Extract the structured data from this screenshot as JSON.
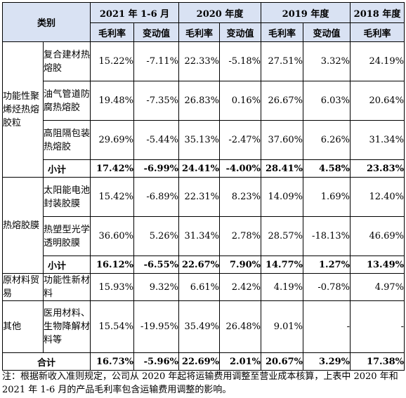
{
  "headers": {
    "category": "类别",
    "periods": [
      "2021 年 1-6 月",
      "2020 年度",
      "2019 年度",
      "2018 年度"
    ],
    "gross_margin": "毛利率",
    "change": "变动值"
  },
  "groups": [
    {
      "name": "功能性聚烯烃热熔胶粒",
      "rows": [
        {
          "name": "复合建材热熔胶",
          "values": [
            "15.22%",
            "-7.11%",
            "22.33%",
            "-5.18%",
            "27.51%",
            "3.32%",
            "24.19%"
          ]
        },
        {
          "name": "油气管道防腐热熔胶",
          "values": [
            "19.48%",
            "-7.35%",
            "26.83%",
            "0.16%",
            "26.67%",
            "6.03%",
            "20.64%"
          ]
        },
        {
          "name": "高阻隔包装热熔胶",
          "values": [
            "29.69%",
            "-5.44%",
            "35.13%",
            "-2.47%",
            "37.60%",
            "6.26%",
            "31.34%"
          ]
        }
      ],
      "subtotal": {
        "label": "小计",
        "values": [
          "17.42%",
          "-6.99%",
          "24.41%",
          "-4.00%",
          "28.41%",
          "4.58%",
          "23.83%"
        ]
      }
    },
    {
      "name": "热熔胶膜",
      "rows": [
        {
          "name": "太阳能电池封装胶膜",
          "values": [
            "15.42%",
            "-6.89%",
            "22.31%",
            "8.23%",
            "14.09%",
            "1.69%",
            "12.40%"
          ]
        },
        {
          "name": "热塑型光学透明胶膜",
          "values": [
            "36.60%",
            "5.26%",
            "31.34%",
            "2.78%",
            "28.57%",
            "-18.13%",
            "46.69%"
          ]
        }
      ],
      "subtotal": {
        "label": "小计",
        "values": [
          "16.12%",
          "-6.55%",
          "22.67%",
          "7.90%",
          "14.77%",
          "1.27%",
          "13.49%"
        ]
      }
    },
    {
      "name": "原材料贸易",
      "rows": [
        {
          "name": "功能性新材料",
          "values": [
            "15.93%",
            "9.32%",
            "6.61%",
            "2.42%",
            "4.19%",
            "-0.78%",
            "4.97%"
          ]
        }
      ]
    },
    {
      "name": "其他",
      "rows": [
        {
          "name": "医用材料、生物降解材料等",
          "values": [
            "15.54%",
            "-19.95%",
            "35.49%",
            "26.48%",
            "9.01%",
            "-",
            "-"
          ]
        }
      ]
    }
  ],
  "total": {
    "label": "合计",
    "values": [
      "16.73%",
      "-5.96%",
      "22.69%",
      "2.01%",
      "20.67%",
      "3.29%",
      "17.38%"
    ]
  },
  "note": "注：根据新收入准则规定，公司从 2020 年起将运输费用调整至营业成本核算，上表中 2020 年和 2021 年 1-6 月的产品毛利率包含运输费用调整的影响。"
}
